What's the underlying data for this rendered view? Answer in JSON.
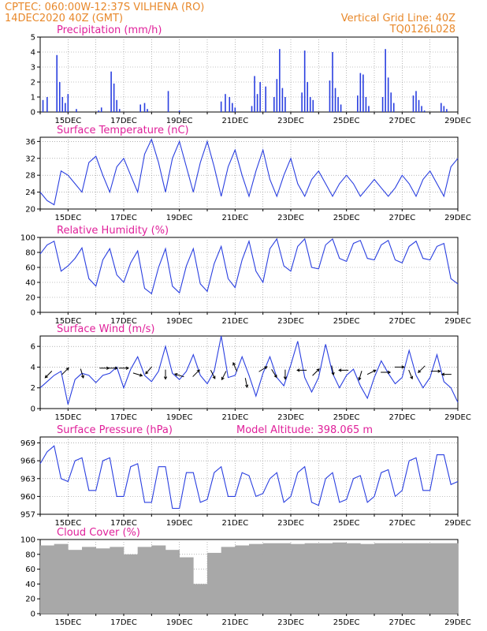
{
  "header": {
    "line1": "CPTEC:   060:00W-12:37S   VILHENA (RO)",
    "line2": "14DEC2020 40Z (GMT)",
    "grid_note": "Vertical Grid Line: 40Z",
    "code": "TQ0126L028"
  },
  "colors": {
    "header": "#e8882a",
    "panel_title": "#e0209a",
    "series": "#2a3fe0",
    "cloud": "#a8a8a8",
    "arrow": "#000000"
  },
  "x_ticks": [
    "15DEC",
    "17DEC",
    "19DEC",
    "21DEC",
    "23DEC",
    "25DEC",
    "27DEC",
    "29DEC"
  ],
  "chart_data": [
    {
      "type": "bar",
      "title": "Precipitation (mm/h)",
      "ylim": [
        0,
        5
      ],
      "yticks": [
        "0",
        "1",
        "2",
        "3",
        "4",
        "5"
      ],
      "x_days": [
        0.1,
        0.25,
        0.6,
        0.7,
        0.8,
        0.9,
        1.0,
        1.3,
        2.1,
        2.2,
        2.55,
        2.65,
        2.75,
        2.85,
        3.6,
        3.75,
        3.85,
        4.6,
        5.0,
        6.5,
        6.65,
        6.8,
        6.9,
        7.0,
        7.6,
        7.7,
        7.8,
        7.9,
        8.1,
        8.4,
        8.5,
        8.6,
        8.7,
        8.8,
        9.4,
        9.5,
        9.6,
        9.7,
        9.8,
        10.4,
        10.5,
        10.6,
        10.7,
        10.8,
        11.4,
        11.5,
        11.6,
        11.7,
        11.8,
        12.3,
        12.4,
        12.5,
        12.6,
        12.7,
        13.4,
        13.5,
        13.6,
        13.7,
        13.8,
        14.4,
        14.5,
        14.6
      ],
      "values": [
        0.8,
        1.0,
        3.8,
        2.0,
        1.0,
        0.6,
        1.2,
        0.2,
        0.1,
        0.3,
        2.7,
        1.9,
        0.8,
        0.2,
        0.5,
        0.6,
        0.2,
        1.4,
        0.1,
        0.7,
        1.2,
        1.0,
        0.6,
        0.3,
        0.4,
        2.4,
        1.2,
        2.0,
        1.7,
        1.0,
        2.2,
        4.2,
        1.6,
        1.0,
        1.3,
        4.1,
        2.0,
        1.0,
        0.8,
        2.1,
        4.0,
        1.6,
        1.0,
        0.5,
        1.1,
        2.6,
        2.5,
        1.0,
        0.4,
        1.0,
        4.2,
        2.3,
        1.3,
        0.6,
        1.1,
        1.4,
        0.8,
        0.4,
        0.1,
        0.6,
        0.4,
        0.2
      ]
    },
    {
      "type": "line",
      "title": "Surface Temperature (nC)",
      "ylim": [
        20,
        37
      ],
      "yticks": [
        "20",
        "24",
        "28",
        "32",
        "36"
      ],
      "x_days": [
        0,
        0.25,
        0.5,
        0.75,
        1,
        1.25,
        1.5,
        1.75,
        2,
        2.25,
        2.5,
        2.75,
        3,
        3.25,
        3.5,
        3.75,
        4,
        4.25,
        4.5,
        4.75,
        5,
        5.25,
        5.5,
        5.75,
        6,
        6.25,
        6.5,
        6.75,
        7,
        7.25,
        7.5,
        7.75,
        8,
        8.25,
        8.5,
        8.75,
        9,
        9.25,
        9.5,
        9.75,
        10,
        10.25,
        10.5,
        10.75,
        11,
        11.25,
        11.5,
        11.75,
        12,
        12.25,
        12.5,
        12.75,
        13,
        13.25,
        13.5,
        13.75,
        14,
        14.25,
        14.5,
        14.75,
        15
      ],
      "values": [
        24,
        22,
        21,
        29,
        28,
        26,
        24,
        31,
        32.5,
        28,
        24,
        30,
        32,
        28,
        24,
        33,
        36.5,
        31,
        24,
        32,
        36,
        30,
        24,
        31,
        36,
        30,
        23,
        30,
        34,
        28,
        23,
        29,
        34,
        27,
        23,
        28,
        32,
        26,
        23,
        27,
        29,
        26,
        23,
        26,
        28,
        26,
        23,
        25,
        27,
        25,
        23,
        25,
        28,
        26,
        23,
        27,
        29,
        26,
        23,
        30,
        32
      ]
    },
    {
      "type": "line",
      "title": "Relative Humidity (%)",
      "ylim": [
        0,
        100
      ],
      "yticks": [
        "0",
        "20",
        "40",
        "60",
        "80",
        "100"
      ],
      "x_days": [
        0,
        0.25,
        0.5,
        0.75,
        1,
        1.25,
        1.5,
        1.75,
        2,
        2.25,
        2.5,
        2.75,
        3,
        3.25,
        3.5,
        3.75,
        4,
        4.25,
        4.5,
        4.75,
        5,
        5.25,
        5.5,
        5.75,
        6,
        6.25,
        6.5,
        6.75,
        7,
        7.25,
        7.5,
        7.75,
        8,
        8.25,
        8.5,
        8.75,
        9,
        9.25,
        9.5,
        9.75,
        10,
        10.25,
        10.5,
        10.75,
        11,
        11.25,
        11.5,
        11.75,
        12,
        12.25,
        12.5,
        12.75,
        13,
        13.25,
        13.5,
        13.75,
        14,
        14.25,
        14.5,
        14.75,
        15
      ],
      "values": [
        78,
        90,
        95,
        55,
        62,
        72,
        86,
        45,
        35,
        70,
        85,
        50,
        40,
        66,
        82,
        32,
        25,
        60,
        85,
        35,
        26,
        62,
        85,
        38,
        28,
        65,
        88,
        45,
        33,
        70,
        95,
        55,
        40,
        85,
        98,
        62,
        55,
        88,
        98,
        60,
        58,
        90,
        98,
        72,
        68,
        92,
        96,
        72,
        70,
        90,
        96,
        70,
        66,
        88,
        95,
        72,
        70,
        88,
        92,
        45,
        38
      ]
    },
    {
      "type": "line",
      "title": "Surface Wind (m/s)",
      "ylim": [
        0,
        7
      ],
      "yticks": [
        "0",
        "2",
        "4",
        "6"
      ],
      "x_days": [
        0,
        0.25,
        0.5,
        0.75,
        1,
        1.25,
        1.5,
        1.75,
        2,
        2.25,
        2.5,
        2.75,
        3,
        3.25,
        3.5,
        3.75,
        4,
        4.25,
        4.5,
        4.75,
        5,
        5.25,
        5.5,
        5.75,
        6,
        6.25,
        6.5,
        6.75,
        7,
        7.25,
        7.5,
        7.75,
        8,
        8.25,
        8.5,
        8.75,
        9,
        9.25,
        9.5,
        9.75,
        10,
        10.25,
        10.5,
        10.75,
        11,
        11.25,
        11.5,
        11.75,
        12,
        12.25,
        12.5,
        12.75,
        13,
        13.25,
        13.5,
        13.75,
        14,
        14.25,
        14.5,
        14.75,
        15
      ],
      "values": [
        2,
        2.6,
        3.2,
        3.6,
        0.4,
        2.8,
        3.4,
        3.2,
        2.5,
        3.2,
        3.4,
        4.0,
        2.0,
        3.8,
        5.0,
        3.2,
        2.6,
        3.6,
        6.0,
        3.4,
        2.8,
        3.6,
        5.2,
        3.2,
        2.4,
        3.6,
        7.0,
        3.0,
        3.2,
        5.0,
        3.2,
        1.2,
        3.4,
        5.0,
        3.0,
        2.2,
        4.2,
        6.5,
        3.0,
        1.6,
        3.0,
        6.2,
        3.4,
        2.0,
        3.2,
        3.8,
        2.2,
        1.0,
        3.0,
        4.6,
        3.4,
        2.4,
        3.0,
        5.6,
        3.2,
        2.0,
        3.0,
        5.2,
        2.6,
        2.0,
        0.6
      ],
      "vectors": {
        "x_days": [
          0.3,
          0.9,
          1.5,
          2.3,
          2.6,
          3.0,
          3.5,
          3.9,
          4.5,
          5.0,
          5.6,
          6.2,
          6.6,
          7.0,
          7.4,
          8.0,
          8.4,
          8.8,
          9.4,
          9.9,
          10.5,
          10.9,
          11.5,
          11.9,
          12.4,
          12.9,
          13.3,
          13.7,
          14.2,
          14.6
        ],
        "y": [
          3.3,
          3.6,
          3.4,
          3.9,
          3.9,
          3.9,
          3.3,
          3.7,
          3.3,
          3.2,
          3.4,
          3.3,
          3.2,
          4.0,
          2.5,
          3.8,
          3.4,
          3.3,
          3.7,
          3.5,
          3.7,
          3.7,
          3.2,
          3.5,
          3.5,
          4.0,
          3.3,
          3.8,
          3.6,
          3.3
        ],
        "u": [
          -1,
          0.6,
          0.3,
          1,
          1,
          1,
          1,
          -0.7,
          0,
          -1,
          0.6,
          0.4,
          -0.5,
          -0.3,
          0.2,
          0.8,
          0.5,
          0,
          -1,
          0.6,
          0.2,
          -1,
          -0.3,
          0.8,
          1,
          1,
          0.4,
          -0.7,
          1,
          -1
        ],
        "v": [
          -1,
          0.6,
          -1,
          0,
          0,
          0,
          -0.3,
          -0.8,
          -1,
          0.3,
          0.6,
          -0.8,
          -1,
          0.7,
          -1,
          0.5,
          -0.8,
          -1,
          0,
          0.6,
          -1,
          0,
          -1,
          0.4,
          0,
          0,
          -1,
          -0.7,
          0,
          0
        ]
      }
    },
    {
      "type": "line",
      "title": "Surface Pressure (hPa)",
      "annotation": "Model Altitude: 398.065 m",
      "ylim": [
        957,
        970
      ],
      "yticks": [
        "957",
        "960",
        "963",
        "966",
        "969"
      ],
      "x_days": [
        0,
        0.25,
        0.5,
        0.75,
        1,
        1.25,
        1.5,
        1.75,
        2,
        2.25,
        2.5,
        2.75,
        3,
        3.25,
        3.5,
        3.75,
        4,
        4.25,
        4.5,
        4.75,
        5,
        5.25,
        5.5,
        5.75,
        6,
        6.25,
        6.5,
        6.75,
        7,
        7.25,
        7.5,
        7.75,
        8,
        8.25,
        8.5,
        8.75,
        9,
        9.25,
        9.5,
        9.75,
        10,
        10.25,
        10.5,
        10.75,
        11,
        11.25,
        11.5,
        11.75,
        12,
        12.25,
        12.5,
        12.75,
        13,
        13.25,
        13.5,
        13.75,
        14,
        14.25,
        14.5,
        14.75,
        15
      ],
      "values": [
        965.5,
        967.5,
        968.5,
        963,
        962.5,
        966,
        966.5,
        961,
        961,
        966,
        966.5,
        960,
        960,
        965,
        965.5,
        959,
        959,
        965,
        965,
        958,
        958,
        964,
        964,
        959,
        959.5,
        964,
        965,
        960,
        960,
        964,
        963.5,
        960,
        960.5,
        963,
        964,
        959,
        960,
        964,
        965,
        959,
        958.5,
        963,
        964,
        959,
        959.5,
        963,
        963.5,
        959,
        960,
        964,
        964.5,
        960,
        961,
        966,
        966.5,
        961,
        961,
        967,
        967,
        962,
        962.5
      ]
    },
    {
      "type": "bar",
      "title": "Cloud Cover (%)",
      "ylim": [
        0,
        100
      ],
      "yticks": [
        "0",
        "20",
        "40",
        "60",
        "80",
        "100"
      ],
      "x_days": [
        0,
        0.5,
        1,
        1.5,
        2,
        2.5,
        3,
        3.5,
        4,
        4.5,
        5,
        5.5,
        6,
        6.5,
        7,
        7.5,
        8,
        8.5,
        9,
        9.5,
        10,
        10.5,
        11,
        11.5,
        12,
        12.5,
        13,
        13.5,
        14,
        14.5
      ],
      "values": [
        92,
        94,
        86,
        90,
        88,
        90,
        80,
        90,
        92,
        86,
        76,
        40,
        82,
        90,
        92,
        94,
        95,
        95,
        94,
        95,
        95,
        96,
        95,
        94,
        95,
        95,
        95,
        95,
        95,
        95
      ]
    }
  ]
}
